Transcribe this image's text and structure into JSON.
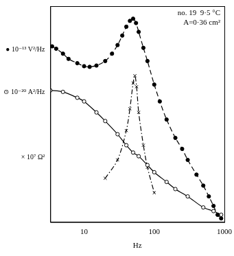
{
  "chart_data": {
    "type": "line",
    "xlabel": "Hz",
    "annotations": [
      "no. 19  9·5 °C",
      "A=0·36 cm²"
    ],
    "log": "x",
    "grid": false,
    "xlim": [
      3.3,
      1000
    ],
    "xticks": [
      10,
      100,
      1000
    ],
    "ylim": [
      0,
      10
    ],
    "yticks": [
      {
        "value": 8,
        "label": "● 10⁻¹³ V²/Hz"
      },
      {
        "value": 6,
        "label": "⊙ 10⁻²⁰ A²/Hz"
      },
      {
        "value": 3,
        "label": "× 10⁷ Ω²"
      }
    ],
    "series": [
      {
        "color": "#000000",
        "marker": "circle",
        "line_style": "dashed",
        "x": [
          3.5,
          4,
          5,
          6,
          8,
          10,
          12,
          15,
          20,
          25,
          30,
          35,
          40,
          45,
          50,
          55,
          60,
          70,
          80,
          100,
          120,
          150,
          200,
          250,
          300,
          400,
          500,
          600,
          700,
          800,
          900
        ],
        "values": [
          8.14,
          8.03,
          7.8,
          7.56,
          7.36,
          7.22,
          7.19,
          7.25,
          7.46,
          7.8,
          8.2,
          8.64,
          9.05,
          9.32,
          9.42,
          9.22,
          8.81,
          8.07,
          7.46,
          6.37,
          5.59,
          4.75,
          3.9,
          3.39,
          2.88,
          2.2,
          1.69,
          1.19,
          0.75,
          0.34,
          0.17
        ]
      },
      {
        "color": "#000000",
        "marker": "circle_open",
        "line_style": "solid",
        "x": [
          3.3,
          5,
          8,
          10,
          15,
          20,
          30,
          40,
          50,
          60,
          80,
          100,
          150,
          200,
          300,
          500,
          700,
          900
        ],
        "values": [
          6.1,
          6.03,
          5.76,
          5.59,
          5.08,
          4.68,
          4.07,
          3.56,
          3.22,
          3.05,
          2.64,
          2.31,
          1.86,
          1.53,
          1.19,
          0.68,
          0.51,
          0.34
        ]
      },
      {
        "color": "#000000",
        "marker": "cross",
        "line_style": "dashdot",
        "x": [
          20,
          30,
          40,
          45,
          50,
          53,
          56,
          60,
          70,
          80,
          100
        ],
        "values": [
          2.03,
          2.88,
          4.24,
          5.25,
          6.44,
          6.78,
          6.27,
          5.08,
          3.56,
          2.54,
          1.36
        ]
      }
    ]
  }
}
